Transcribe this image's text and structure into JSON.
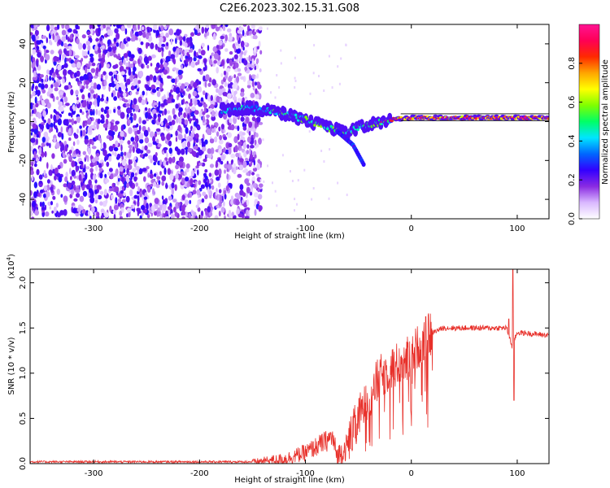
{
  "title": "C2E6.2023.302.15.31.G08",
  "chart_data": [
    {
      "type": "heatmap",
      "name": "spectrogram",
      "xlabel": "Height of straight line (km)",
      "ylabel": "Frequency (Hz)",
      "xlim": [
        -360,
        130
      ],
      "ylim": [
        -50,
        50
      ],
      "xticks": [
        -300,
        -200,
        -100,
        0,
        100
      ],
      "yticks": [
        -40,
        -20,
        0,
        20,
        40
      ],
      "noise_region_x": [
        -360,
        -150
      ],
      "signal_track": [
        {
          "x": -180,
          "y": 6
        },
        {
          "x": -150,
          "y": 7
        },
        {
          "x": -140,
          "y": 6
        },
        {
          "x": -120,
          "y": 4
        },
        {
          "x": -100,
          "y": 1
        },
        {
          "x": -80,
          "y": -3
        },
        {
          "x": -60,
          "y": -6
        },
        {
          "x": -50,
          "y": -3
        },
        {
          "x": -40,
          "y": -2
        },
        {
          "x": -20,
          "y": 1
        },
        {
          "x": 0,
          "y": 2
        },
        {
          "x": 50,
          "y": 2
        },
        {
          "x": 90,
          "y": 2
        },
        {
          "x": 130,
          "y": 2
        }
      ],
      "secondary_track": [
        {
          "x": -70,
          "y": -5
        },
        {
          "x": -55,
          "y": -12
        },
        {
          "x": -45,
          "y": -22
        }
      ],
      "reference_line": {
        "y_top": 4,
        "y_bottom": 0.5,
        "x_from": -10
      },
      "colorbar": {
        "label": "Normalized spectral amplitude",
        "range": [
          0,
          1
        ],
        "ticks": [
          0.0,
          0.2,
          0.4,
          0.6,
          0.8
        ],
        "colors": [
          "#ffffff",
          "#d9b8ff",
          "#8a2be2",
          "#3300ff",
          "#0066ff",
          "#00e5ff",
          "#00ff66",
          "#7fff00",
          "#ffff00",
          "#ffa500",
          "#ff2a00",
          "#ff0055",
          "#ff1493"
        ]
      }
    },
    {
      "type": "line",
      "name": "snr",
      "xlabel": "Height of straight line (km)",
      "ylabel": "SNR (10 * v/v)",
      "multiplier": "(x10",
      "multiplier_exp": "4",
      "multiplier_close": ")",
      "xlim": [
        -360,
        130
      ],
      "ylim": [
        0,
        2.15
      ],
      "xticks": [
        -300,
        -200,
        -100,
        0,
        100
      ],
      "yticks": [
        "0.0",
        "0.5",
        "1.0",
        "1.5",
        "2.0"
      ],
      "color": "#e8302a",
      "profile": [
        {
          "x": -360,
          "y": 0.02
        },
        {
          "x": -150,
          "y": 0.02
        },
        {
          "x": -120,
          "y": 0.05
        },
        {
          "x": -100,
          "y": 0.12
        },
        {
          "x": -80,
          "y": 0.25
        },
        {
          "x": -75,
          "y": 0.3
        },
        {
          "x": -70,
          "y": 0.08
        },
        {
          "x": -60,
          "y": 0.2
        },
        {
          "x": -50,
          "y": 0.5
        },
        {
          "x": -40,
          "y": 0.75
        },
        {
          "x": -30,
          "y": 0.95
        },
        {
          "x": -20,
          "y": 1.05
        },
        {
          "x": -10,
          "y": 1.12
        },
        {
          "x": 0,
          "y": 1.2
        },
        {
          "x": 10,
          "y": 1.35
        },
        {
          "x": 20,
          "y": 1.45
        },
        {
          "x": 30,
          "y": 1.5
        },
        {
          "x": 60,
          "y": 1.5
        },
        {
          "x": 90,
          "y": 1.5
        },
        {
          "x": 95,
          "y": 1.3
        },
        {
          "x": 100,
          "y": 1.45
        },
        {
          "x": 130,
          "y": 1.42
        }
      ],
      "spikes": [
        {
          "x": 96,
          "y": 2.15
        },
        {
          "x": 97,
          "y": 0.7
        },
        {
          "x": 92,
          "y": 1.6
        }
      ]
    }
  ]
}
